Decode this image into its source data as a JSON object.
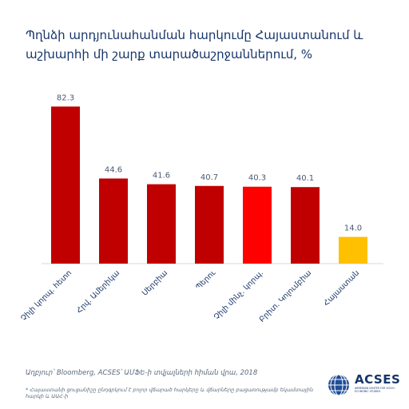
{
  "chart_data": {
    "type": "bar",
    "title": "Պղնձի արդյունահանման հարկումը Հայաստանում և աշխարհի մի շարք տարածաշրջաններում, %",
    "categories": [
      "Չիլի կորպ. հետո",
      "Հրվ. Ամերիկա",
      "Սերբիա",
      "Պերու",
      "Չիլի մինչ. կորպ.",
      "Բրիտ. Կոլումբիա",
      "Հայաստան"
    ],
    "values": [
      82.3,
      44.6,
      41.6,
      40.7,
      40.3,
      40.1,
      14.0
    ],
    "value_labels": [
      "82.3",
      "44.6",
      "41.6",
      "40.7",
      "40.3",
      "40.1",
      "14.0"
    ],
    "colors": [
      "#c00000",
      "#c00000",
      "#c00000",
      "#c00000",
      "#ff0000",
      "#c00000",
      "#ffc000"
    ],
    "ylim": [
      0,
      90
    ],
    "xlabel": "",
    "ylabel": "",
    "grid": false,
    "legend": "none"
  },
  "footer": {
    "source": "Աղբյուր՝ Bloomberg, ACSES՝ ԱՄՖԵ-ի տվյալների հիման վրա, 2018",
    "note": "* Հայաստանի ցուցանիշը ընդգրկում է բոլոր վճարած հարկերը և վճարները բացառությամբ եկամտային հարկի և ԱԱՀ-ի"
  },
  "logo": {
    "name": "ACSES",
    "tagline": "ARMENIAN CENTER FOR SOCIO-ECONOMIC STUDIES"
  }
}
